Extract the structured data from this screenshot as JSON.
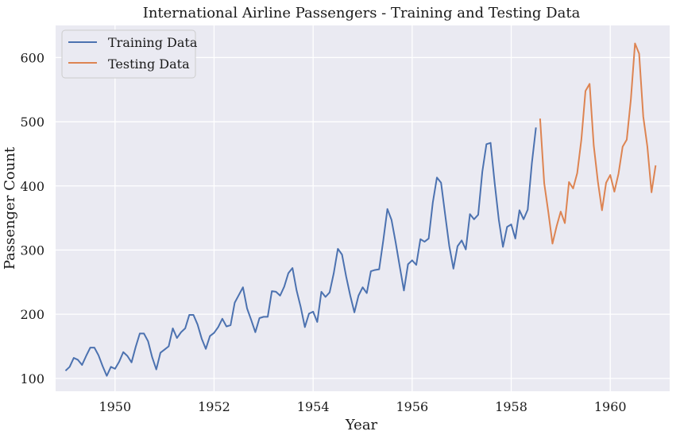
{
  "chart_data": {
    "type": "line",
    "title": "International Airline Passengers - Training and Testing Data",
    "xlabel": "Year",
    "ylabel": "Passenger Count",
    "xlim": [
      1948.8,
      1961.2
    ],
    "ylim": [
      80,
      650
    ],
    "xticks": [
      1950,
      1952,
      1954,
      1956,
      1958,
      1960
    ],
    "yticks": [
      100,
      200,
      300,
      400,
      500,
      600
    ],
    "grid": true,
    "legend_position": "top-left",
    "series": [
      {
        "name": "Training Data",
        "color": "#4c72b0",
        "start": 1949.0,
        "step": 0.0833333,
        "values": [
          112,
          118,
          132,
          129,
          121,
          135,
          148,
          148,
          136,
          119,
          104,
          118,
          115,
          126,
          141,
          135,
          125,
          149,
          170,
          170,
          158,
          133,
          114,
          140,
          145,
          150,
          178,
          163,
          172,
          178,
          199,
          199,
          184,
          162,
          146,
          166,
          171,
          180,
          193,
          181,
          183,
          218,
          230,
          242,
          209,
          191,
          172,
          194,
          196,
          196,
          236,
          235,
          229,
          243,
          264,
          272,
          237,
          211,
          180,
          201,
          204,
          188,
          235,
          227,
          234,
          264,
          302,
          293,
          259,
          229,
          203,
          229,
          242,
          233,
          267,
          269,
          270,
          315,
          364,
          347,
          312,
          274,
          237,
          278,
          284,
          277,
          317,
          313,
          318,
          374,
          413,
          405,
          355,
          306,
          271,
          306,
          315,
          301,
          356,
          348,
          355,
          422,
          465,
          467,
          404,
          347,
          305,
          336,
          340,
          318,
          362,
          348,
          363,
          435,
          491
        ]
      },
      {
        "name": "Testing Data",
        "color": "#dd8452",
        "start": 1958.5833333,
        "step": 0.0833333,
        "values": [
          505,
          404,
          359,
          310,
          337,
          360,
          342,
          406,
          396,
          420,
          472,
          548,
          559,
          463,
          407,
          362,
          405,
          417,
          391,
          419,
          461,
          472,
          535,
          622,
          606,
          508,
          461,
          390,
          432
        ]
      }
    ]
  }
}
